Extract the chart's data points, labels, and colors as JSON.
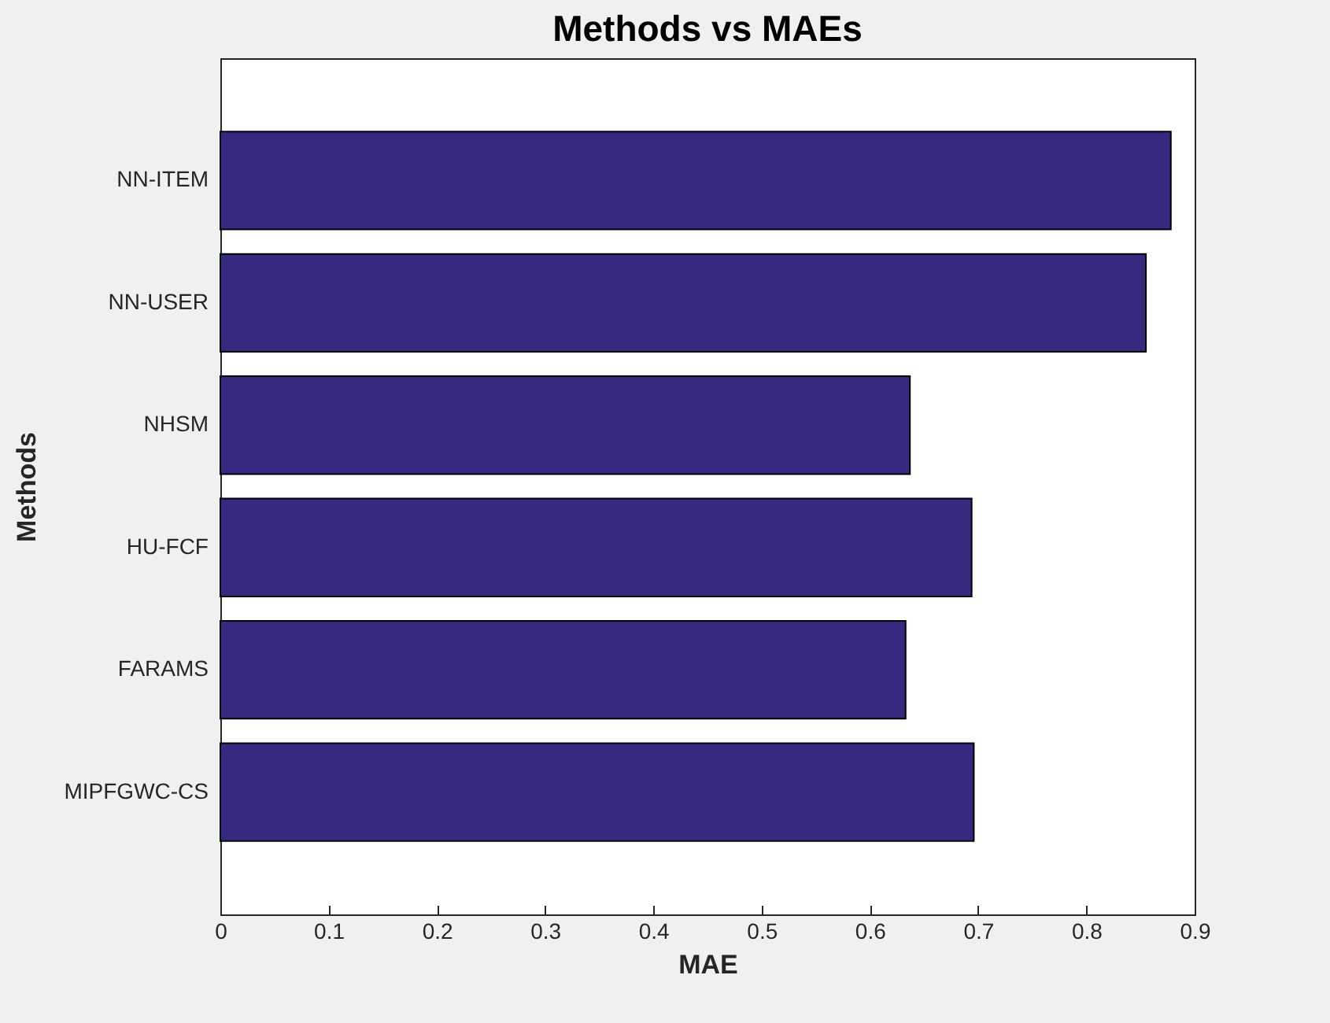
{
  "chart_data": {
    "type": "bar",
    "orientation": "horizontal",
    "title": "Methods vs MAEs",
    "xlabel": "MAE",
    "ylabel": "Methods",
    "categories": [
      "NN-ITEM",
      "NN-USER",
      "NHSM",
      "HU-FCF",
      "FARAMS",
      "MIPFGWC-CS"
    ],
    "values": [
      0.878,
      0.855,
      0.637,
      0.694,
      0.633,
      0.696
    ],
    "color": "#352a80",
    "xlim": [
      0,
      0.9
    ],
    "xticks": [
      0,
      0.1,
      0.2,
      0.3,
      0.4,
      0.5,
      0.6,
      0.7,
      0.8,
      0.9
    ],
    "grid": false
  }
}
